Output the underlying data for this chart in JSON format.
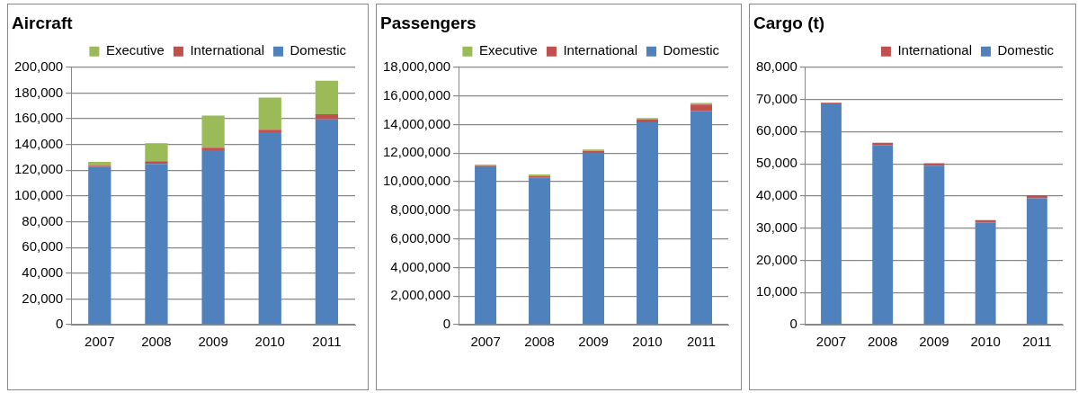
{
  "chart_data": [
    {
      "type": "bar",
      "title": "Aircraft",
      "stacked": true,
      "grid": "y",
      "legend": "top right",
      "categories": [
        "2007",
        "2008",
        "2009",
        "2010",
        "2011"
      ],
      "series": [
        {
          "name": "Domestic",
          "color": "#4f81bd",
          "values": [
            122500,
            125000,
            135500,
            149500,
            159500
          ]
        },
        {
          "name": "International",
          "color": "#c0504d",
          "values": [
            1100,
            2000,
            2000,
            2000,
            4000
          ]
        },
        {
          "name": "Executive",
          "color": "#9bbb59",
          "values": [
            2900,
            14000,
            25000,
            25000,
            26000
          ]
        }
      ],
      "ylim": [
        0,
        200000
      ],
      "yticks": [
        {
          "value": 0,
          "label": "0"
        },
        {
          "value": 20000,
          "label": "20,000"
        },
        {
          "value": 40000,
          "label": "40,000"
        },
        {
          "value": 60000,
          "label": "60,000"
        },
        {
          "value": 80000,
          "label": "80,000"
        },
        {
          "value": 100000,
          "label": "100,000"
        },
        {
          "value": 120000,
          "label": "120,000"
        },
        {
          "value": 140000,
          "label": "140,000"
        },
        {
          "value": 160000,
          "label": "160,000"
        },
        {
          "value": 180000,
          "label": "180,000"
        },
        {
          "value": 200000,
          "label": "200,000"
        }
      ]
    },
    {
      "type": "bar",
      "title": "Passengers",
      "stacked": true,
      "grid": "y",
      "legend": "top right",
      "categories": [
        "2007",
        "2008",
        "2009",
        "2010",
        "2011"
      ],
      "series": [
        {
          "name": "Domestic",
          "color": "#4f81bd",
          "values": [
            11000000,
            10300000,
            12000000,
            14150000,
            14950000
          ]
        },
        {
          "name": "International",
          "color": "#c0504d",
          "values": [
            100000,
            100000,
            150000,
            200000,
            450000
          ]
        },
        {
          "name": "Executive",
          "color": "#9bbb59",
          "values": [
            100000,
            100000,
            100000,
            100000,
            100000
          ]
        }
      ],
      "ylim": [
        0,
        18000000
      ],
      "yticks": [
        {
          "value": 0,
          "label": "0"
        },
        {
          "value": 2000000,
          "label": "2,000,000"
        },
        {
          "value": 4000000,
          "label": "4,000,000"
        },
        {
          "value": 6000000,
          "label": "6,000,000"
        },
        {
          "value": 8000000,
          "label": "8,000,000"
        },
        {
          "value": 10000000,
          "label": "10,000,000"
        },
        {
          "value": 12000000,
          "label": "12,000,000"
        },
        {
          "value": 14000000,
          "label": "14,000,000"
        },
        {
          "value": 16000000,
          "label": "16,000,000"
        },
        {
          "value": 18000000,
          "label": "18,000,000"
        }
      ]
    },
    {
      "type": "bar",
      "title": "Cargo (t)",
      "stacked": true,
      "grid": "y",
      "legend": "top right",
      "categories": [
        "2007",
        "2008",
        "2009",
        "2010",
        "2011"
      ],
      "series": [
        {
          "name": "Domestic",
          "color": "#4f81bd",
          "values": [
            68500,
            55700,
            49400,
            31800,
            39300
          ]
        },
        {
          "name": "International",
          "color": "#c0504d",
          "values": [
            500,
            800,
            800,
            700,
            900
          ]
        }
      ],
      "ylim": [
        0,
        80000
      ],
      "yticks": [
        {
          "value": 0,
          "label": "0"
        },
        {
          "value": 10000,
          "label": "10,000"
        },
        {
          "value": 20000,
          "label": "20,000"
        },
        {
          "value": 30000,
          "label": "30,000"
        },
        {
          "value": 40000,
          "label": "40,000"
        },
        {
          "value": 50000,
          "label": "50,000"
        },
        {
          "value": 60000,
          "label": "60,000"
        },
        {
          "value": 70000,
          "label": "70,000"
        },
        {
          "value": 80000,
          "label": "80,000"
        }
      ]
    }
  ]
}
